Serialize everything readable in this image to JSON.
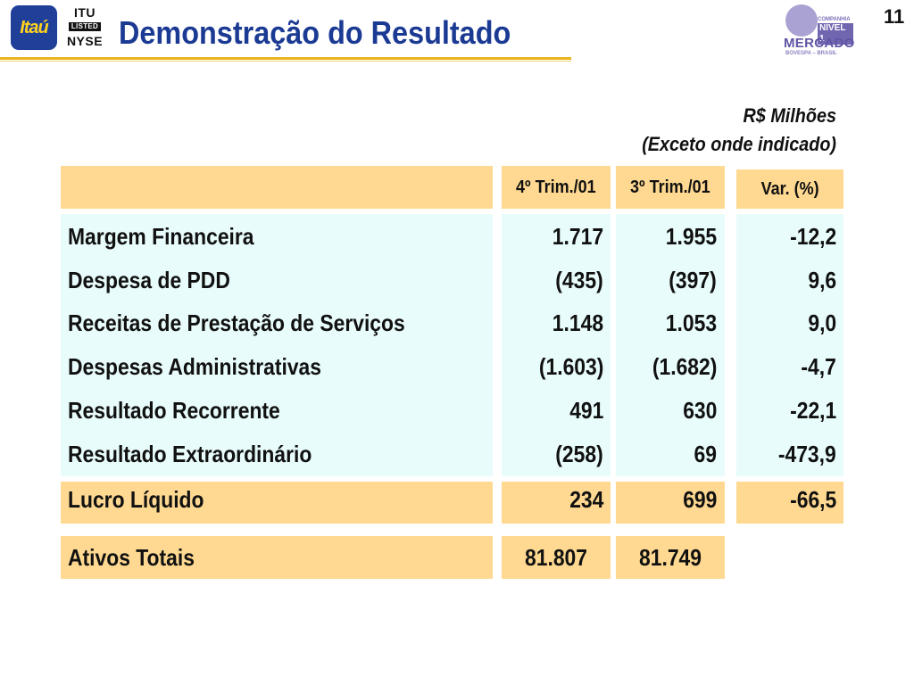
{
  "header": {
    "itau_logo_text": "Itaú",
    "nyse_line1": "ITU",
    "nyse_line2": "LISTED",
    "nyse_line3": "NYSE",
    "title": "Demonstração do Resultado",
    "bovespa_line1": "COMPANHIA",
    "bovespa_nivel": "NÍVEL 1",
    "bovespa_mercado": "MERCADO",
    "bovespa_sub": "BOVESPA – BRASIL",
    "page_number": "11"
  },
  "unit_caption": {
    "line1": "R$ Milhões",
    "line2": "(Exceto onde indicado)"
  },
  "table": {
    "columns": [
      "4º Trim./01",
      "3º Trim./01",
      "Var. (%)"
    ],
    "rows": [
      {
        "label": "Margem Financeira",
        "q4": "1.717",
        "q3": "1.955",
        "var": "-12,2"
      },
      {
        "label": "Despesa de PDD",
        "q4": "(435)",
        "q3": "(397)",
        "var": "9,6"
      },
      {
        "label": "Receitas de Prestação de Serviços",
        "q4": "1.148",
        "q3": "1.053",
        "var": "9,0"
      },
      {
        "label": "Despesas Administrativas",
        "q4": "(1.603)",
        "q3": "(1.682)",
        "var": "-4,7"
      },
      {
        "label": "Resultado Recorrente",
        "q4": "491",
        "q3": "630",
        "var": "-22,1"
      },
      {
        "label": "Resultado Extraordinário",
        "q4": "(258)",
        "q3": "69",
        "var": "-473,9"
      }
    ],
    "net_income": {
      "label": "Lucro Líquido",
      "q4": "234",
      "q3": "699",
      "var": "-66,5"
    },
    "total_assets": {
      "label": "Ativos Totais",
      "q4": "81.807",
      "q3": "81.749"
    }
  },
  "colors": {
    "title": "#1b3a93",
    "accent_rule": "#e8b51a",
    "orange_fill": "#ffd991",
    "cyan_fill": "#e8fcfb"
  }
}
